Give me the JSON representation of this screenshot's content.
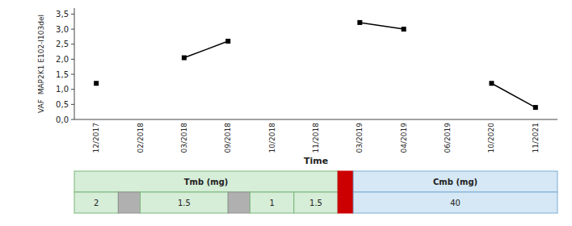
{
  "chart_data": {
    "type": "line",
    "categories": [
      "12/2017",
      "02/2018",
      "03/2018",
      "09/2018",
      "10/2018",
      "11/2018",
      "03/2019",
      "04/2019",
      "06/2019",
      "10/2020",
      "11/2021"
    ],
    "values": [
      1.2,
      null,
      2.05,
      2.6,
      null,
      null,
      3.22,
      3.0,
      null,
      1.2,
      0.4
    ],
    "color": "#000000",
    "marker": "square",
    "ylabel": "VAF  MAP2K1 E102-I103del",
    "xlabel": "Time",
    "ylim": [
      0.0,
      3.7
    ],
    "yticks": [
      {
        "value": 0.0,
        "label": "0,0"
      },
      {
        "value": 0.5,
        "label": "0,5"
      },
      {
        "value": 1.0,
        "label": "1,0"
      },
      {
        "value": 1.5,
        "label": "1,5"
      },
      {
        "value": 2.0,
        "label": "2,0"
      },
      {
        "value": 2.5,
        "label": "2,5"
      },
      {
        "value": 3.0,
        "label": "3,0"
      },
      {
        "value": 3.5,
        "label": "3,5"
      }
    ],
    "grid": false,
    "dose_table": {
      "tmb_label": "Tmb (mg)",
      "tmb_doses": [
        2,
        null,
        1.5,
        null,
        1,
        1.5
      ],
      "tmb_dose_spans": [
        1,
        0.5,
        2,
        0.5,
        1,
        1
      ],
      "tmb_color": "#d6edd8",
      "tmb_border": "#7ab87a",
      "pause_color": "#b0b0b0",
      "pause_border": "#909090",
      "switch_color": "#cc0000",
      "cmb_label": "Cmb (mg)",
      "cmb_dose": 40,
      "cmb_color": "#d6e8f5",
      "cmb_border": "#7aadd4"
    }
  }
}
